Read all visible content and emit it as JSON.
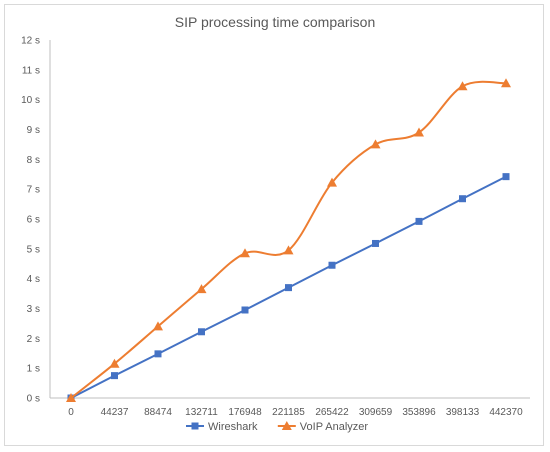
{
  "chart_data": {
    "type": "line",
    "title": "SIP processing time comparison",
    "categories": [
      "0",
      "44237",
      "88474",
      "132711",
      "176948",
      "221185",
      "265422",
      "309659",
      "353896",
      "398133",
      "442370"
    ],
    "y_ticks": [
      "0 s",
      "1 s",
      "2 s",
      "3 s",
      "4 s",
      "5 s",
      "6 s",
      "7 s",
      "8 s",
      "9 s",
      "10 s",
      "11 s",
      "12 s"
    ],
    "ylim": [
      0,
      12
    ],
    "grid": false,
    "legend_position": "bottom",
    "series": [
      {
        "name": "Wireshark",
        "color": "#4472c4",
        "marker": "square",
        "smooth": false,
        "values": [
          0,
          0.75,
          1.48,
          2.22,
          2.95,
          3.7,
          4.45,
          5.18,
          5.92,
          6.68,
          7.42
        ]
      },
      {
        "name": "VoIP Analyzer",
        "color": "#ed7d31",
        "marker": "triangle",
        "smooth": true,
        "values": [
          0,
          1.15,
          2.4,
          3.65,
          4.85,
          4.95,
          7.22,
          8.5,
          8.9,
          10.45,
          10.55
        ]
      }
    ]
  }
}
